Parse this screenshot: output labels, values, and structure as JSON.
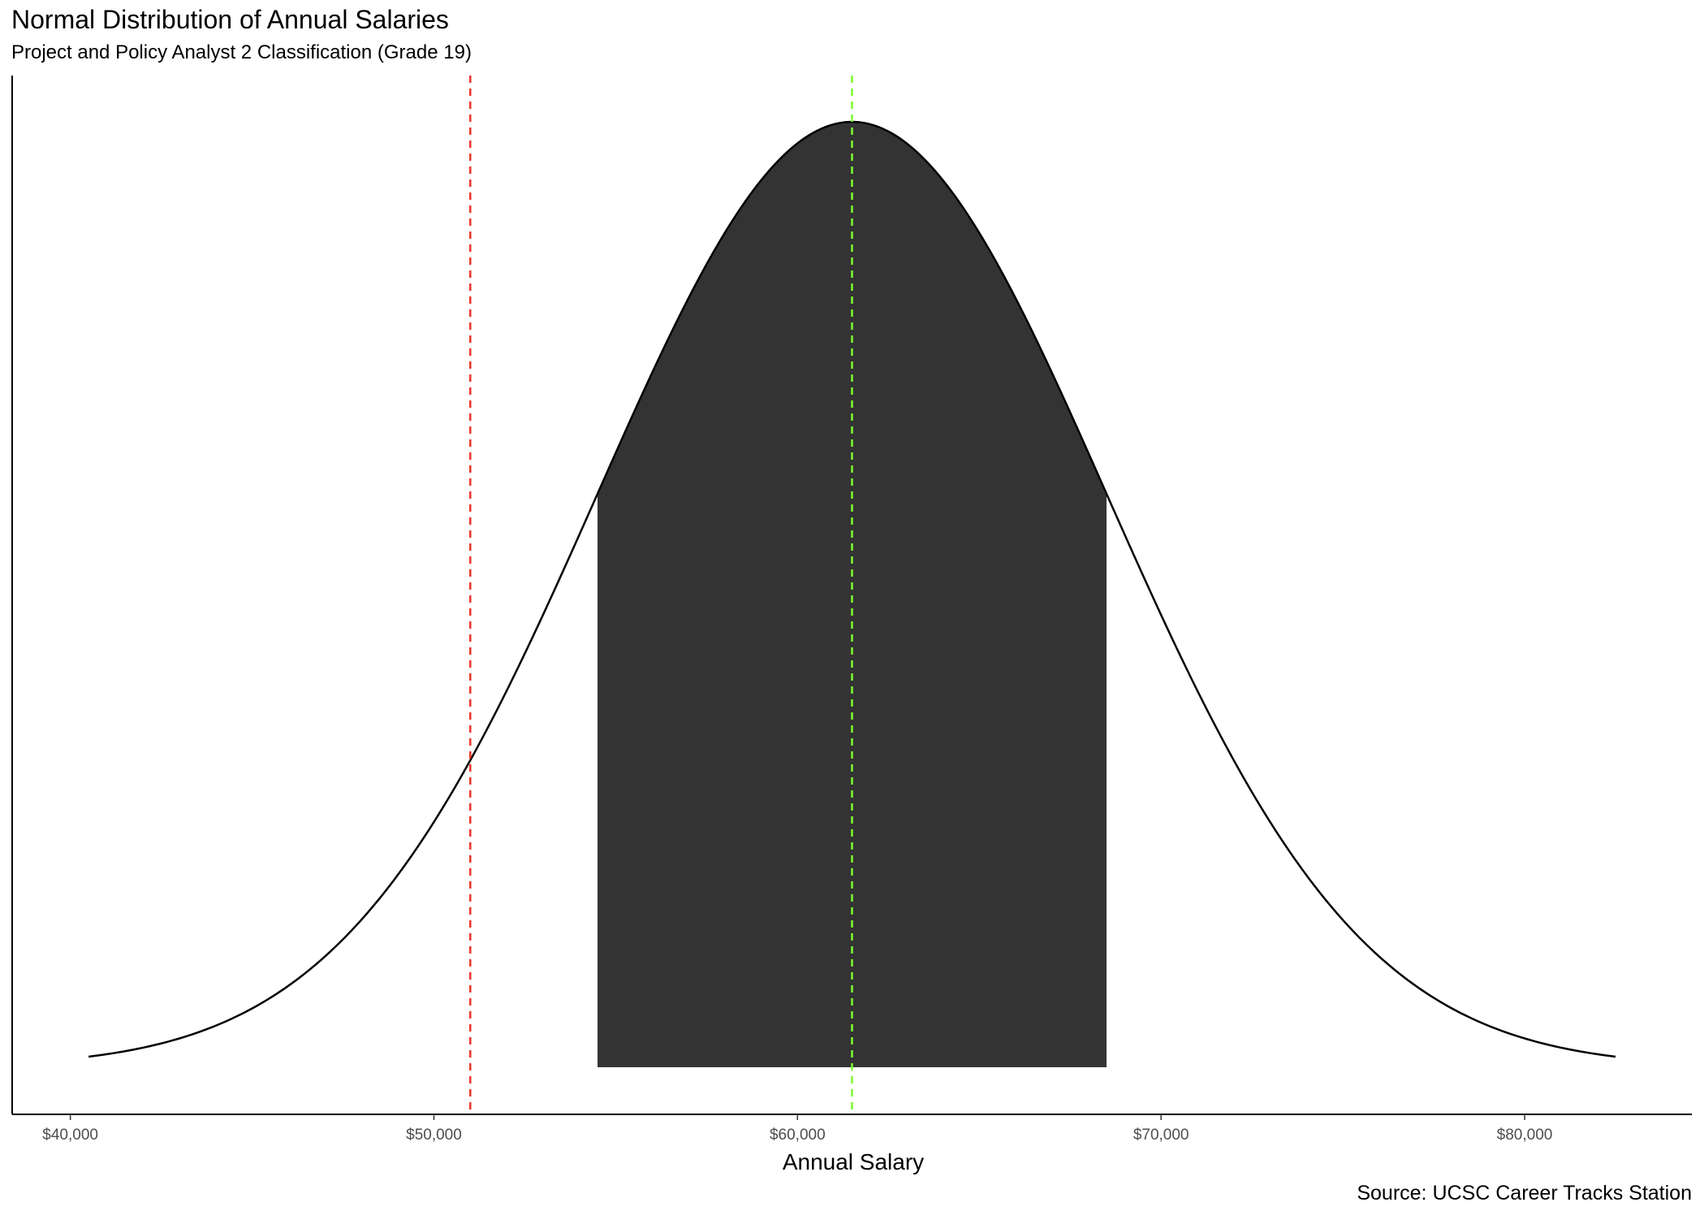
{
  "chart_data": {
    "type": "area",
    "title": "Normal Distribution of Annual Salaries",
    "subtitle": "Project and Policy Analyst 2 Classification (Grade 19)",
    "xlabel": "Annual Salary",
    "ylabel": "",
    "caption": "Source: UCSC Career Tracks Station",
    "xlim": [
      38400,
      84600
    ],
    "x_ticks": [
      40000,
      50000,
      60000,
      70000,
      80000
    ],
    "x_tick_labels": [
      "$40,000",
      "$50,000",
      "$60,000",
      "$70,000",
      "$80,000"
    ],
    "y_axis_ticks_shown": false,
    "grid": false,
    "distribution": {
      "mean": 61500,
      "sd": 7000,
      "x_range": [
        40500,
        82500
      ]
    },
    "shaded_interval": {
      "x_range": [
        54500,
        68500
      ],
      "fill_color": "#333333"
    },
    "reference_lines": [
      {
        "x": 51000,
        "color": "#e8352b",
        "style": "dashed"
      },
      {
        "x": 61500,
        "color": "#7dfa2f",
        "style": "dashed"
      }
    ],
    "curve_color": "#000000",
    "legend": "none"
  }
}
